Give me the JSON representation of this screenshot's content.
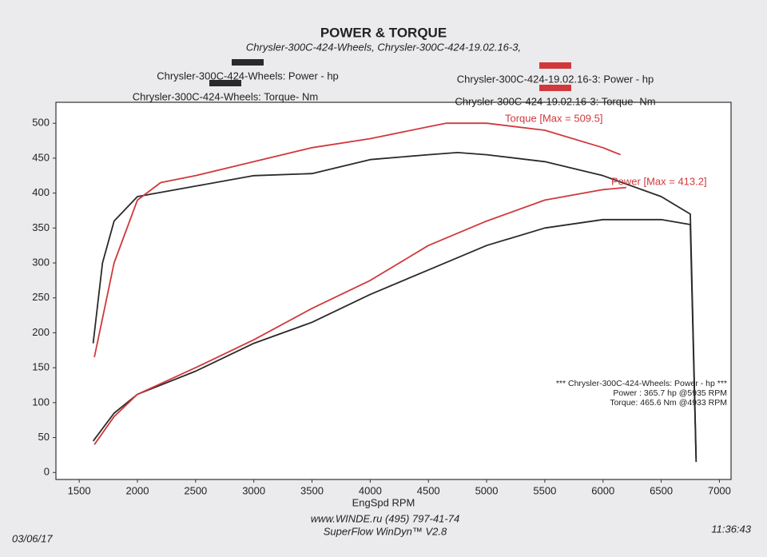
{
  "chart_data": {
    "type": "line",
    "title": "POWER & TORQUE",
    "subtitle": "Chrysler-300C-424-Wheels, Chrysler-300C-424-19.02.16-3,",
    "x_label": "EngSpd  RPM",
    "xlim": [
      1300,
      7100
    ],
    "xticks": [
      1500,
      2000,
      2500,
      3000,
      3500,
      4000,
      4500,
      5000,
      5500,
      6000,
      6500,
      7000
    ],
    "ylim": [
      -10,
      530
    ],
    "yticks": [
      0,
      50,
      100,
      150,
      200,
      250,
      300,
      350,
      400,
      450,
      500
    ],
    "series": [
      {
        "name": "Chrysler-300C-424-Wheels: Power -  hp",
        "color": "#2a2a2a",
        "x": [
          1620,
          1800,
          2000,
          2500,
          3000,
          3500,
          4000,
          4500,
          5000,
          5500,
          6000,
          6500,
          6750,
          6800
        ],
        "values": [
          45,
          85,
          112,
          145,
          185,
          215,
          255,
          290,
          325,
          350,
          362,
          362,
          355,
          15
        ]
      },
      {
        "name": "Chrysler-300C-424-Wheels: Torque-  Nm",
        "color": "#2a2a2a",
        "x": [
          1620,
          1700,
          1800,
          2000,
          2500,
          3000,
          3500,
          4000,
          4500,
          4750,
          5000,
          5500,
          6000,
          6500,
          6750,
          6800
        ],
        "values": [
          185,
          300,
          360,
          395,
          410,
          425,
          428,
          448,
          455,
          458,
          455,
          445,
          425,
          395,
          370,
          20
        ]
      },
      {
        "name": "Chrysler-300C-424-19.02.16-3: Power -  hp",
        "color": "#d0383c",
        "x": [
          1630,
          1800,
          2000,
          2500,
          3000,
          3500,
          4000,
          4500,
          5000,
          5500,
          6000,
          6200
        ],
        "values": [
          40,
          80,
          112,
          150,
          190,
          235,
          275,
          325,
          360,
          390,
          405,
          408
        ]
      },
      {
        "name": "Chrysler-300C-424-19.02.16-3: Torque-  Nm",
        "color": "#d0383c",
        "x": [
          1630,
          1800,
          2000,
          2200,
          2500,
          3000,
          3500,
          4000,
          4500,
          4650,
          5000,
          5500,
          6000,
          6150
        ],
        "values": [
          165,
          300,
          390,
          415,
          425,
          445,
          465,
          478,
          495,
          500,
          500,
          490,
          465,
          455
        ]
      }
    ],
    "annotations": [
      "Torque [Max = 509.5]",
      "Power  [Max = 413.2]"
    ],
    "info_box": [
      "*** Chrysler-300C-424-Wheels: Power -  hp  ***",
      "Power :  365.7 hp    @5935 RPM",
      "Torque:  465.6 Nm    @4933 RPM"
    ],
    "footer": [
      "www.WINDE.ru (495) 797-41-74",
      "SuperFlow WinDyn™ V2.8"
    ],
    "date": "03/06/17",
    "time": "11:36:43"
  }
}
